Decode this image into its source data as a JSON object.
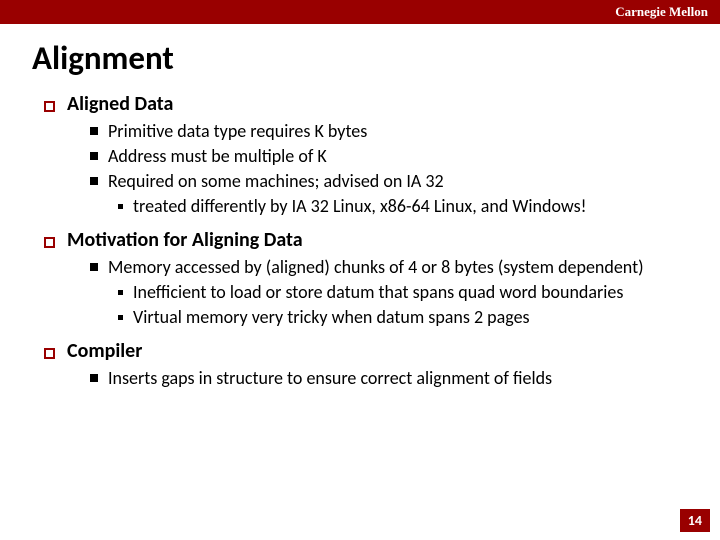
{
  "colors": {
    "accent": "#990000",
    "background": "#ffffff",
    "text": "#000000"
  },
  "header": {
    "university": "Carnegie Mellon"
  },
  "title": "Alignment",
  "sections": [
    {
      "heading": "Aligned Data",
      "items": [
        {
          "text": "Primitive data type requires K bytes",
          "sub": []
        },
        {
          "text": "Address must be multiple of K",
          "sub": []
        },
        {
          "text": "Required on some machines; advised on IA 32",
          "sub": [
            {
              "text": "treated differently by IA 32 Linux, x86-64 Linux, and Windows!"
            }
          ]
        }
      ]
    },
    {
      "heading": "Motivation for Aligning Data",
      "items": [
        {
          "text": "Memory accessed by (aligned) chunks of 4 or 8 bytes (system dependent)",
          "sub": [
            {
              "text": "Inefficient to load or store datum that spans quad word boundaries"
            },
            {
              "text": "Virtual memory very tricky when datum spans 2 pages"
            }
          ]
        }
      ]
    },
    {
      "heading": "Compiler",
      "items": [
        {
          "text": "Inserts gaps in structure to ensure correct alignment of fields",
          "sub": []
        }
      ]
    }
  ],
  "page_number": "14"
}
